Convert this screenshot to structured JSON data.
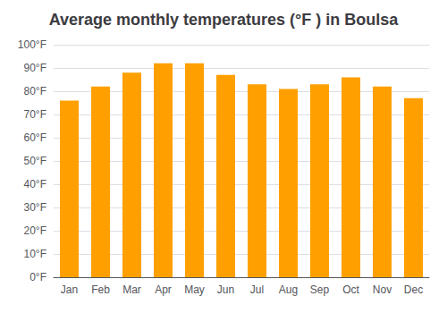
{
  "chart_data": {
    "type": "bar",
    "title": "Average monthly temperatures (°F ) in Boulsa",
    "categories": [
      "Jan",
      "Feb",
      "Mar",
      "Apr",
      "May",
      "Jun",
      "Jul",
      "Aug",
      "Sep",
      "Oct",
      "Nov",
      "Dec"
    ],
    "values": [
      76,
      82,
      88,
      92,
      92,
      87,
      83,
      81,
      83,
      86,
      82,
      77
    ],
    "color": "#FFA000",
    "ylim": [
      0,
      100
    ],
    "yticks": [
      {
        "value": 0,
        "label": "0°F"
      },
      {
        "value": 10,
        "label": "10°F"
      },
      {
        "value": 20,
        "label": "20°F"
      },
      {
        "value": 30,
        "label": "30°F"
      },
      {
        "value": 40,
        "label": "40°F"
      },
      {
        "value": 50,
        "label": "50°F"
      },
      {
        "value": 60,
        "label": "60°F"
      },
      {
        "value": 70,
        "label": "70°F"
      },
      {
        "value": 80,
        "label": "80°F"
      },
      {
        "value": 90,
        "label": "90°F"
      },
      {
        "value": 100,
        "label": "100°F"
      }
    ],
    "grid": true
  }
}
